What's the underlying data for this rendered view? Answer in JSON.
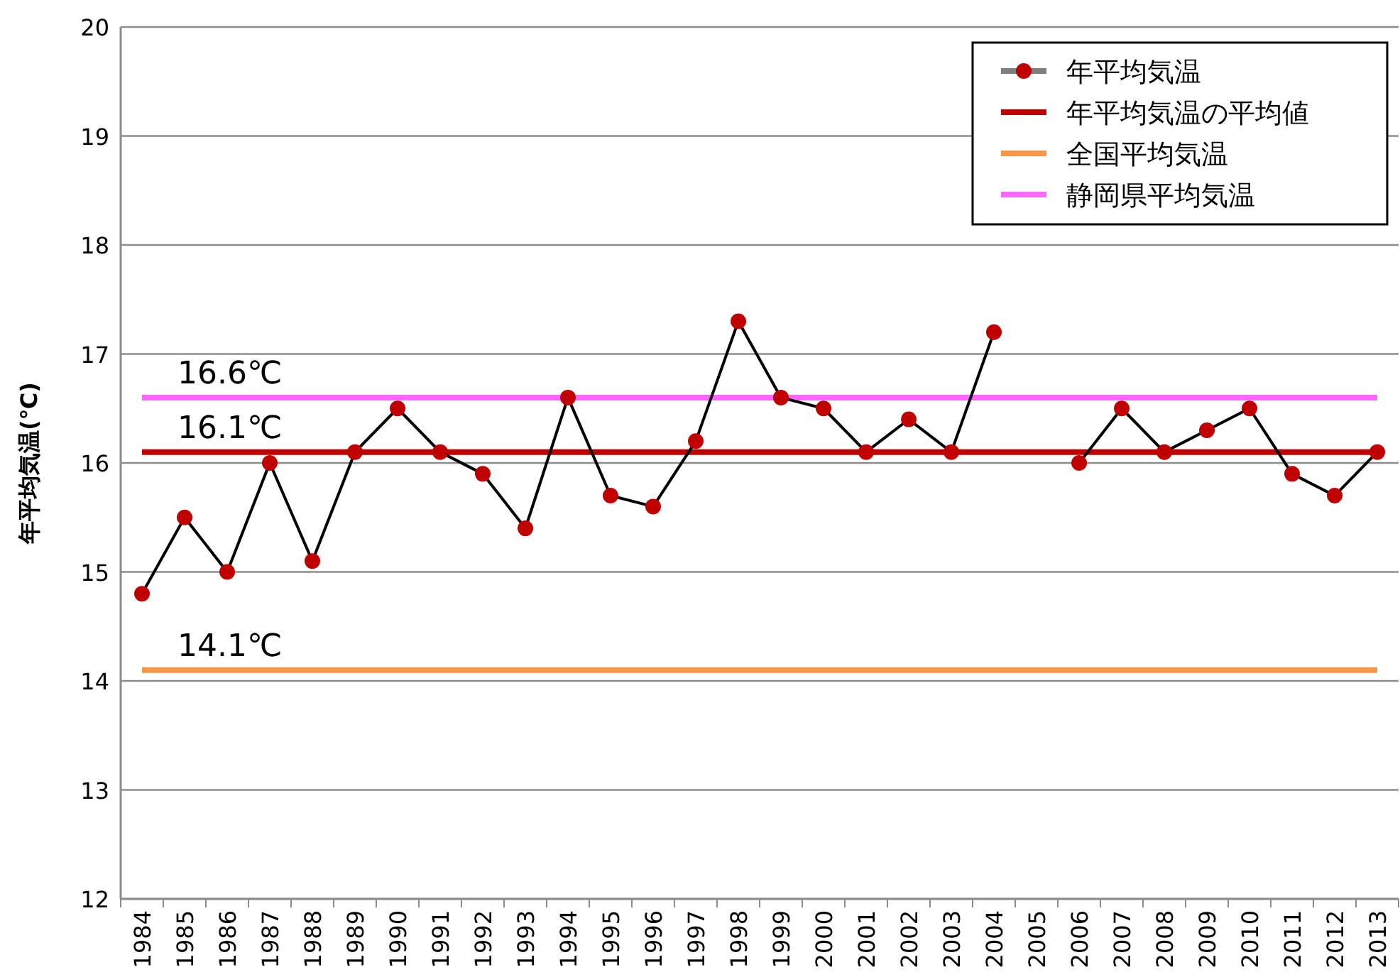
{
  "chart_data": {
    "type": "line",
    "ylabel": "年平均気温(℃)",
    "categories": [
      "1984",
      "1985",
      "1986",
      "1987",
      "1988",
      "1989",
      "1990",
      "1991",
      "1992",
      "1993",
      "1994",
      "1995",
      "1996",
      "1997",
      "1998",
      "1999",
      "2000",
      "2001",
      "2002",
      "2003",
      "2004",
      "2005",
      "2006",
      "2007",
      "2008",
      "2009",
      "2010",
      "2011",
      "2012",
      "2013"
    ],
    "series": [
      {
        "name": "年平均気温",
        "color": "#c00000",
        "values": [
          14.8,
          15.5,
          15.0,
          16.0,
          15.1,
          16.1,
          16.5,
          16.1,
          15.9,
          15.4,
          16.6,
          15.7,
          15.6,
          16.2,
          17.3,
          16.6,
          16.5,
          16.1,
          16.4,
          16.1,
          17.2,
          null,
          16.0,
          16.5,
          16.1,
          16.3,
          16.5,
          15.9,
          15.7,
          16.1
        ]
      }
    ],
    "ref_lines": [
      {
        "axis": "y",
        "value": 16.1,
        "label": "年平均気温の平均値",
        "color": "#c00000"
      },
      {
        "axis": "y",
        "value": 14.1,
        "label": "全国平均気温",
        "color": "#f79646"
      },
      {
        "axis": "y",
        "value": 16.6,
        "label": "静岡県平均気温",
        "color": "#ff66ff"
      }
    ],
    "annotations": [
      {
        "text": "16.6℃",
        "y": 16.6
      },
      {
        "text": "16.1℃",
        "y": 16.1
      },
      {
        "text": "14.1℃",
        "y": 14.1
      }
    ],
    "ylim": [
      12,
      20
    ],
    "yticks": [
      12,
      13,
      14,
      15,
      16,
      17,
      18,
      19,
      20
    ],
    "grid": "y",
    "legend": "top right",
    "marker": "circle",
    "line_style": "solid"
  }
}
